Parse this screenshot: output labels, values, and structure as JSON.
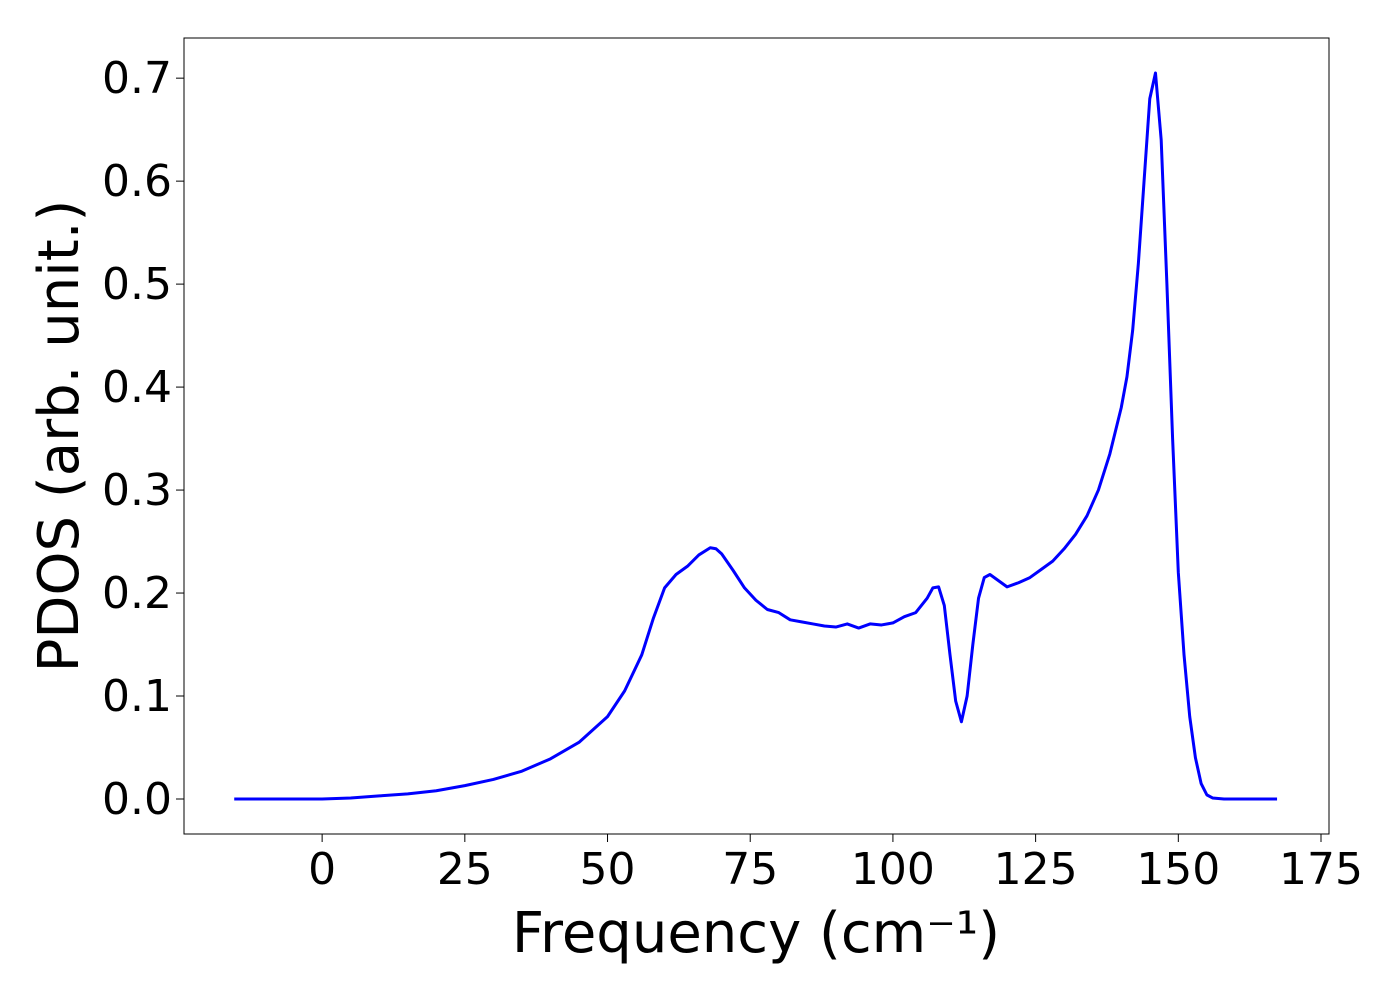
{
  "chart_data": {
    "type": "line",
    "xlabel": "Frequency (cm⁻¹)",
    "ylabel": "PDOS (arb. unit.)",
    "color": "#0000ff",
    "x": [
      -15.4,
      0,
      5,
      10,
      15,
      20,
      25,
      30,
      35,
      40,
      45,
      50,
      53,
      56,
      58,
      60,
      62,
      64,
      66,
      68,
      69,
      70,
      72,
      74,
      76,
      78,
      80,
      82,
      84,
      86,
      88,
      90,
      92,
      94,
      96,
      98,
      100,
      102,
      104,
      106,
      107,
      108,
      109,
      110,
      111,
      112,
      113,
      114,
      115,
      116,
      117,
      118,
      120,
      122,
      124,
      126,
      128,
      130,
      132,
      134,
      136,
      138,
      140,
      141,
      142,
      143,
      144,
      145,
      146,
      147,
      148,
      149,
      150,
      151,
      152,
      153,
      154,
      155,
      156,
      158,
      167.3
    ],
    "values": [
      0,
      0,
      0.001,
      0.003,
      0.005,
      0.008,
      0.013,
      0.019,
      0.027,
      0.039,
      0.055,
      0.08,
      0.105,
      0.14,
      0.175,
      0.205,
      0.218,
      0.226,
      0.237,
      0.244,
      0.243,
      0.238,
      0.222,
      0.205,
      0.193,
      0.184,
      0.181,
      0.174,
      0.172,
      0.17,
      0.168,
      0.167,
      0.17,
      0.166,
      0.17,
      0.169,
      0.171,
      0.177,
      0.181,
      0.195,
      0.205,
      0.206,
      0.188,
      0.14,
      0.095,
      0.075,
      0.1,
      0.15,
      0.195,
      0.215,
      0.218,
      0.214,
      0.206,
      0.21,
      0.215,
      0.223,
      0.231,
      0.243,
      0.257,
      0.275,
      0.3,
      0.335,
      0.38,
      0.41,
      0.455,
      0.52,
      0.6,
      0.68,
      0.705,
      0.64,
      0.5,
      0.35,
      0.22,
      0.14,
      0.08,
      0.04,
      0.015,
      0.004,
      0.001,
      0,
      0
    ],
    "xlim": [
      -24.2,
      176.4
    ],
    "ylim": [
      -0.034,
      0.739
    ],
    "xticks": [
      0,
      25,
      50,
      75,
      100,
      125,
      150,
      175
    ],
    "yticks": [
      {
        "value": 0,
        "label": "0.0"
      },
      0.1,
      0.2,
      0.3,
      0.4,
      0.5,
      0.6,
      0.7
    ]
  }
}
